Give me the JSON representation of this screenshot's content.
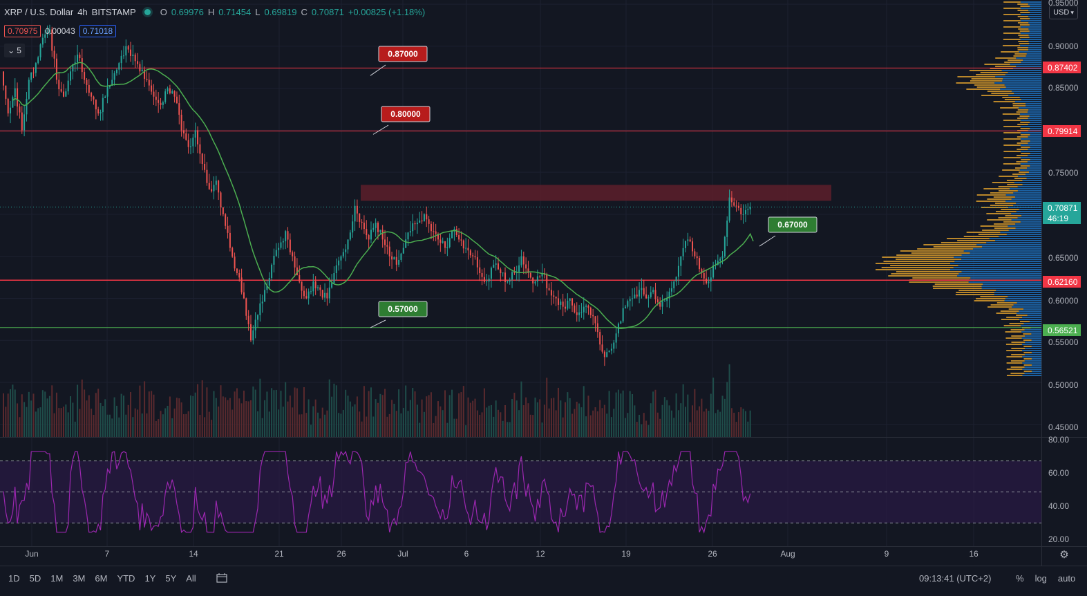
{
  "header": {
    "symbol": "XRP / U.S. Dollar",
    "interval": "4h",
    "exchange": "BITSTAMP",
    "o_label": "O",
    "o_value": "0.69976",
    "h_label": "H",
    "h_value": "0.71454",
    "l_label": "L",
    "l_value": "0.69819",
    "c_label": "C",
    "c_value": "0.70871",
    "change": "+0.00825 (+1.18%)"
  },
  "quotes": {
    "sell": "0.70975",
    "spread": "0.00043",
    "buy": "0.71018",
    "indicators_count": "5"
  },
  "currency_button": "USD",
  "price_axis": {
    "ticks": [
      "0.95000",
      "0.90000",
      "0.85000",
      "0.75000",
      "0.65000",
      "0.60000",
      "0.55000",
      "0.50000",
      "0.45000"
    ],
    "badges": [
      {
        "text": "0.87402",
        "color": "#f23645"
      },
      {
        "text": "0.79914",
        "color": "#f23645"
      },
      {
        "text": "0.70871",
        "color": "#26a69a"
      },
      {
        "text": "46:19",
        "color": "#26a69a"
      },
      {
        "text": "0.62160",
        "color": "#f23645"
      },
      {
        "text": "0.56521",
        "color": "#4caf50"
      }
    ]
  },
  "callouts": [
    {
      "text": "0.87000",
      "color": "#b71c1c"
    },
    {
      "text": "0.80000",
      "color": "#b71c1c"
    },
    {
      "text": "0.67000",
      "color": "#2e7d32"
    },
    {
      "text": "0.57000",
      "color": "#2e7d32"
    }
  ],
  "rsi_axis": [
    "80.00",
    "60.00",
    "40.00",
    "20.00"
  ],
  "time_axis": [
    "Jun",
    "7",
    "14",
    "21",
    "26",
    "Jul",
    "6",
    "12",
    "19",
    "26",
    "Aug",
    "9",
    "16"
  ],
  "bottom": {
    "ranges": [
      "1D",
      "5D",
      "1M",
      "3M",
      "6M",
      "YTD",
      "1Y",
      "5Y",
      "All"
    ],
    "clock": "09:13:41 (UTC+2)",
    "percent": "%",
    "log": "log",
    "auto": "auto"
  },
  "chart_data": {
    "type": "candlestick",
    "colors": {
      "up": "#26a69a",
      "down": "#ef5350",
      "ma": "#4caf50",
      "rsi": "#9c27b0"
    },
    "price_range": [
      0.435,
      0.955
    ],
    "candles": [
      [
        0.87,
        0.82
      ],
      [
        0.82,
        0.85
      ],
      [
        0.85,
        0.8
      ],
      [
        0.8,
        0.86
      ],
      [
        0.86,
        0.88
      ],
      [
        0.88,
        0.91
      ],
      [
        0.91,
        0.92
      ],
      [
        0.92,
        0.86
      ],
      [
        0.86,
        0.84
      ],
      [
        0.84,
        0.87
      ],
      [
        0.87,
        0.89
      ],
      [
        0.89,
        0.86
      ],
      [
        0.86,
        0.84
      ],
      [
        0.84,
        0.82
      ],
      [
        0.82,
        0.84
      ],
      [
        0.84,
        0.86
      ],
      [
        0.86,
        0.88
      ],
      [
        0.88,
        0.9
      ],
      [
        0.9,
        0.89
      ],
      [
        0.89,
        0.87
      ],
      [
        0.87,
        0.86
      ],
      [
        0.86,
        0.84
      ],
      [
        0.84,
        0.83
      ],
      [
        0.83,
        0.85
      ],
      [
        0.85,
        0.84
      ],
      [
        0.84,
        0.8
      ],
      [
        0.8,
        0.78
      ],
      [
        0.78,
        0.8
      ],
      [
        0.8,
        0.76
      ],
      [
        0.76,
        0.73
      ],
      [
        0.73,
        0.74
      ],
      [
        0.74,
        0.7
      ],
      [
        0.7,
        0.66
      ],
      [
        0.66,
        0.63
      ],
      [
        0.63,
        0.6
      ],
      [
        0.6,
        0.55
      ],
      [
        0.55,
        0.58
      ],
      [
        0.58,
        0.61
      ],
      [
        0.61,
        0.64
      ],
      [
        0.64,
        0.66
      ],
      [
        0.66,
        0.68
      ],
      [
        0.68,
        0.65
      ],
      [
        0.65,
        0.62
      ],
      [
        0.62,
        0.6
      ],
      [
        0.6,
        0.62
      ],
      [
        0.62,
        0.61
      ],
      [
        0.61,
        0.6
      ],
      [
        0.6,
        0.63
      ],
      [
        0.63,
        0.65
      ],
      [
        0.65,
        0.67
      ],
      [
        0.67,
        0.71
      ],
      [
        0.71,
        0.69
      ],
      [
        0.69,
        0.67
      ],
      [
        0.67,
        0.69
      ],
      [
        0.69,
        0.67
      ],
      [
        0.67,
        0.65
      ],
      [
        0.65,
        0.64
      ],
      [
        0.64,
        0.66
      ],
      [
        0.66,
        0.68
      ],
      [
        0.68,
        0.69
      ],
      [
        0.69,
        0.7
      ],
      [
        0.7,
        0.68
      ],
      [
        0.68,
        0.67
      ],
      [
        0.67,
        0.66
      ],
      [
        0.66,
        0.68
      ],
      [
        0.68,
        0.67
      ],
      [
        0.67,
        0.66
      ],
      [
        0.66,
        0.65
      ],
      [
        0.65,
        0.63
      ],
      [
        0.63,
        0.62
      ],
      [
        0.62,
        0.64
      ],
      [
        0.64,
        0.63
      ],
      [
        0.63,
        0.62
      ],
      [
        0.62,
        0.63
      ],
      [
        0.63,
        0.65
      ],
      [
        0.65,
        0.63
      ],
      [
        0.63,
        0.62
      ],
      [
        0.62,
        0.63
      ],
      [
        0.63,
        0.61
      ],
      [
        0.61,
        0.6
      ],
      [
        0.6,
        0.59
      ],
      [
        0.59,
        0.6
      ],
      [
        0.6,
        0.58
      ],
      [
        0.58,
        0.59
      ],
      [
        0.59,
        0.58
      ],
      [
        0.58,
        0.56
      ],
      [
        0.56,
        0.53
      ],
      [
        0.53,
        0.54
      ],
      [
        0.54,
        0.57
      ],
      [
        0.57,
        0.59
      ],
      [
        0.59,
        0.6
      ],
      [
        0.6,
        0.61
      ],
      [
        0.61,
        0.6
      ],
      [
        0.6,
        0.61
      ],
      [
        0.61,
        0.59
      ],
      [
        0.59,
        0.6
      ],
      [
        0.6,
        0.62
      ],
      [
        0.62,
        0.65
      ],
      [
        0.65,
        0.67
      ],
      [
        0.67,
        0.65
      ],
      [
        0.65,
        0.63
      ],
      [
        0.63,
        0.62
      ],
      [
        0.62,
        0.64
      ],
      [
        0.64,
        0.65
      ],
      [
        0.65,
        0.72
      ],
      [
        0.72,
        0.71
      ],
      [
        0.71,
        0.7
      ],
      [
        0.7,
        0.709
      ]
    ],
    "horizontal_levels": [
      0.87402,
      0.79914,
      0.6216,
      0.56521
    ],
    "resistance_zone": [
      0.716,
      0.735
    ],
    "rsi_range": [
      15,
      85
    ]
  }
}
